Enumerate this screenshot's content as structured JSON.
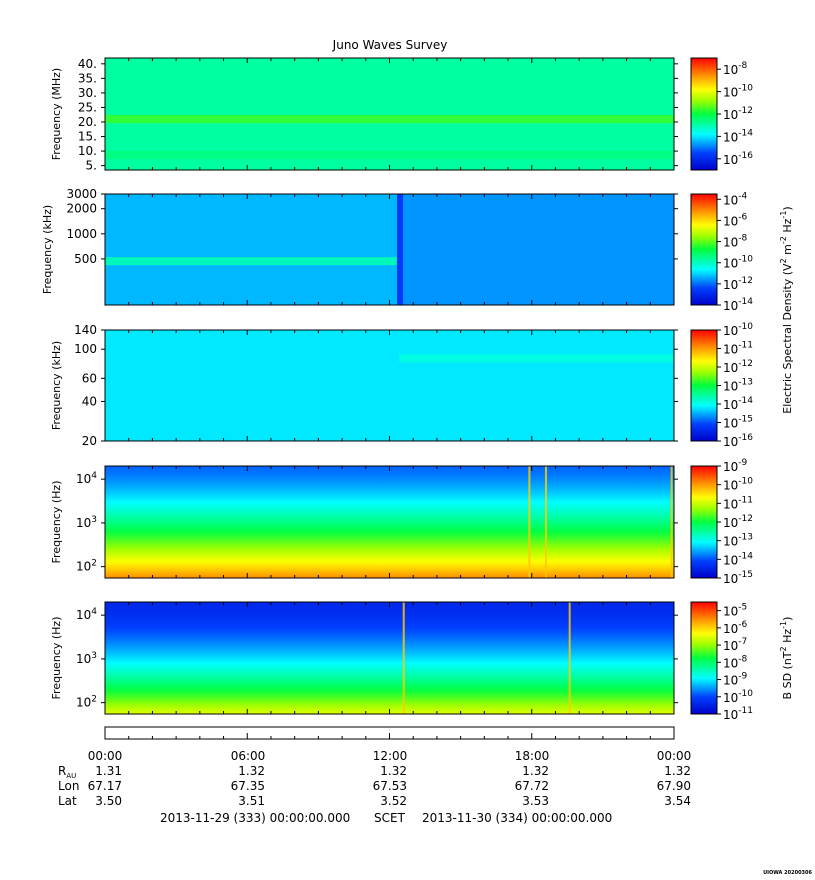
{
  "title": "Juno Waves Survey",
  "footer": {
    "start": "2013-11-29 (333) 00:00:00.000",
    "scet": "SCET",
    "end": "2013-11-30 (334) 00:00:00.000",
    "stamp": "UIOWA 20200306"
  },
  "ephemeris": {
    "times": [
      "00:00",
      "06:00",
      "12:00",
      "18:00",
      "00:00"
    ],
    "rows": [
      {
        "label": "R",
        "sub": "AU",
        "values": [
          "1.31",
          "1.32",
          "1.32",
          "1.32",
          "1.32"
        ]
      },
      {
        "label": "Lon",
        "sub": "",
        "values": [
          "67.17",
          "67.35",
          "67.53",
          "67.72",
          "67.90"
        ]
      },
      {
        "label": "Lat",
        "sub": "",
        "values": [
          "3.50",
          "3.51",
          "3.52",
          "3.53",
          "3.54"
        ]
      }
    ]
  },
  "colorbar_labels": [
    {
      "text": "Electric Spectral Density (V",
      "sup1": "2",
      "mid": " m",
      "sup2": "-2",
      "mid2": " Hz",
      "sup3": "-1",
      "end": ")"
    },
    {
      "text": "B SD (nT",
      "sup1": "2",
      "mid": " Hz",
      "sup2": "-1",
      "mid2": "",
      "sup3": "",
      "end": ")"
    }
  ],
  "chart_data": [
    {
      "type": "heatmap",
      "ylabel": "Frequency (MHz)",
      "yscale": "linear",
      "ylim": [
        3.5,
        42
      ],
      "yticks": [
        5,
        10,
        15,
        20,
        25,
        30,
        35,
        40
      ],
      "yticklabels": [
        "5.",
        "10.",
        "15.",
        "20.",
        "25.",
        "30.",
        "35.",
        "40."
      ],
      "colorbar": {
        "exps": [
          -8,
          -10,
          -12,
          -14,
          -16
        ],
        "range": [
          -17,
          -7
        ],
        "base_level": -12.9
      },
      "features": [
        {
          "kind": "band",
          "at": 21,
          "level": -11.6
        },
        {
          "kind": "band",
          "at": 8.7,
          "level": -12.6
        }
      ]
    },
    {
      "type": "heatmap",
      "ylabel": "Frequency (kHz)",
      "yscale": "log",
      "ylim": [
        140,
        3000
      ],
      "yticks": [
        500,
        1000,
        2000,
        3000
      ],
      "yticklabels": [
        "500",
        "1000",
        "2000",
        "3000"
      ],
      "colorbar": {
        "exps": [
          -4,
          -6,
          -8,
          -10,
          -12,
          -14
        ],
        "range": [
          -14,
          -3.5
        ],
        "base_level": -11.3
      },
      "features": [
        {
          "kind": "band",
          "at": 470,
          "level": -9.9,
          "x_end_hours": 12.3
        },
        {
          "kind": "transition",
          "x_hours": 12.4
        }
      ]
    },
    {
      "type": "heatmap",
      "ylabel": "Frequency (kHz)",
      "yscale": "log",
      "ylim": [
        20,
        140
      ],
      "yticks": [
        20,
        40,
        60,
        100,
        140
      ],
      "yticklabels": [
        "20",
        "40",
        "60",
        "100",
        "140"
      ],
      "colorbar": {
        "exps": [
          -10,
          -11,
          -12,
          -13,
          -14,
          -15,
          -16
        ],
        "range": [
          -16,
          -10
        ],
        "base_level": -14.2
      },
      "features": [
        {
          "kind": "band",
          "at": 85,
          "level": -13.9,
          "x_start_hours": 12.4
        }
      ]
    },
    {
      "type": "heatmap",
      "ylabel": "Frequency (Hz)",
      "yscale": "log",
      "ylim": [
        55,
        20000
      ],
      "yticks": [
        100,
        1000,
        10000
      ],
      "yticklabels": [
        "10^2",
        "10^3",
        "10^4"
      ],
      "colorbar": {
        "exps": [
          -9,
          -10,
          -11,
          -12,
          -13,
          -14,
          -15
        ],
        "range": [
          -15,
          -9
        ],
        "profile": "elf"
      },
      "features": [
        {
          "kind": "spike",
          "x_hours": 17.9
        },
        {
          "kind": "spike",
          "x_hours": 18.6
        },
        {
          "kind": "spike",
          "x_hours": 23.9
        }
      ]
    },
    {
      "type": "heatmap",
      "ylabel": "Frequency (Hz)",
      "yscale": "log",
      "ylim": [
        55,
        20000
      ],
      "yticks": [
        100,
        1000,
        10000
      ],
      "yticklabels": [
        "10^2",
        "10^3",
        "10^4"
      ],
      "colorbar": {
        "exps": [
          -5,
          -6,
          -7,
          -8,
          -9,
          -10,
          -11
        ],
        "range": [
          -11,
          -4.5
        ],
        "profile": "mag"
      },
      "features": [
        {
          "kind": "spike",
          "x_hours": 12.6
        },
        {
          "kind": "spike",
          "x_hours": 19.6
        }
      ]
    }
  ]
}
